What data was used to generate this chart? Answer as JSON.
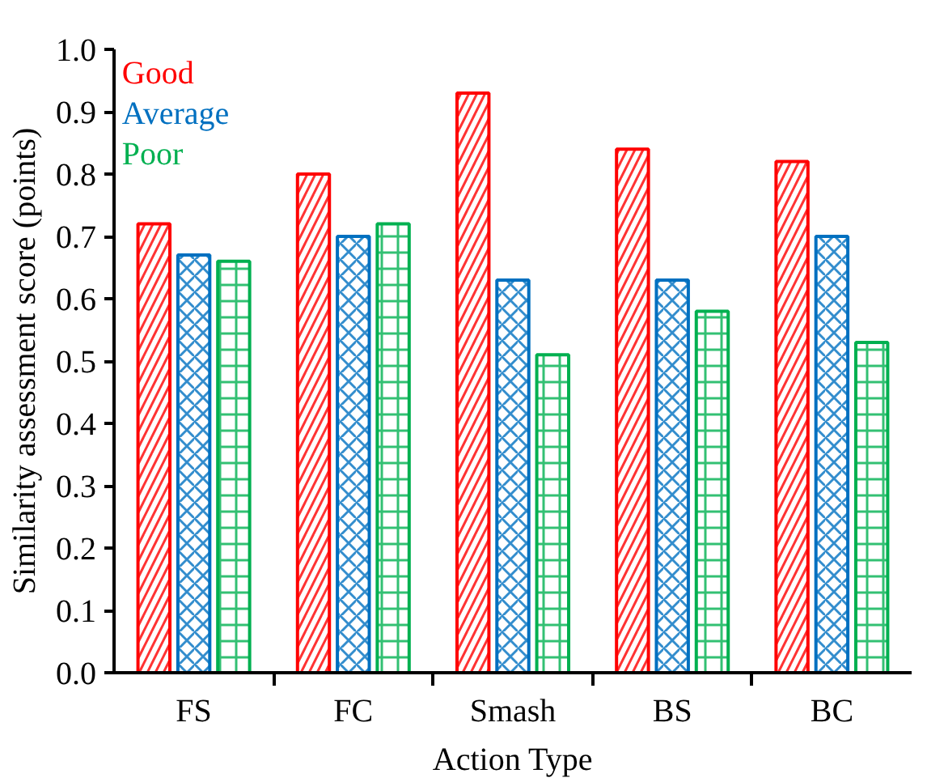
{
  "chart_data": {
    "type": "bar",
    "xlabel": "Action Type",
    "ylabel": "Similarity assessment score (points)",
    "categories": [
      "FS",
      "FC",
      "Smash",
      "BS",
      "BC"
    ],
    "series": [
      {
        "name": "Good",
        "color": "#ff0000",
        "values": [
          0.72,
          0.8,
          0.93,
          0.84,
          0.82
        ]
      },
      {
        "name": "Average",
        "color": "#0070c0",
        "values": [
          0.67,
          0.7,
          0.63,
          0.63,
          0.7
        ]
      },
      {
        "name": "Poor",
        "color": "#00b050",
        "values": [
          0.66,
          0.72,
          0.51,
          0.58,
          0.53
        ]
      }
    ],
    "ylim": [
      0,
      1.0
    ],
    "yticks": [
      "0.0",
      0.1,
      0.2,
      0.3,
      0.4,
      0.5,
      0.6,
      0.7,
      0.8,
      0.9,
      "1.0"
    ],
    "legend": "top left",
    "grid": false
  }
}
